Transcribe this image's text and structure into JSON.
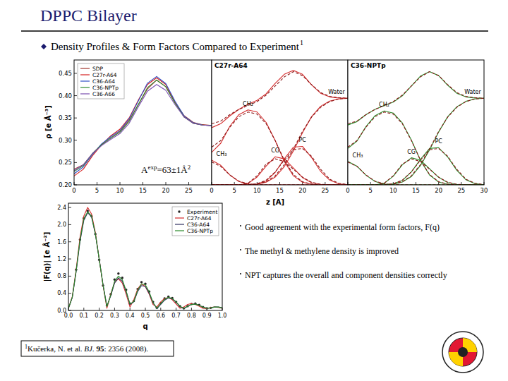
{
  "slide": {
    "title": "DPPC Bilayer",
    "heading": "Density Profiles & Form Factors Compared to Experiment",
    "heading_ref": "1",
    "bullets": [
      "Good agreement with the experimental form factors, F(q)",
      "The methyl & methylene density is improved",
      "NPT captures the overall and component densities correctly"
    ],
    "citation": [
      "1",
      "Kučerka, N. et al. ",
      "BJ.",
      " ",
      "95",
      ": 2356 (2008)."
    ]
  },
  "chart_data": [
    {
      "type": "line",
      "ylabel": "ρ [e Å⁻³]",
      "annotation": [
        "A",
        "exp",
        "=63±1Å",
        "2"
      ],
      "legend": "upper left",
      "grid": false,
      "xlim": [
        0,
        30
      ],
      "xticks": [
        0,
        5,
        10,
        15,
        20,
        25
      ],
      "ylim": [
        0.2,
        0.48
      ],
      "yticks": [
        {
          "value": 0.2,
          "label": "0.20"
        },
        0.25,
        {
          "value": 0.3,
          "label": "0.30"
        },
        0.35,
        {
          "value": 0.4,
          "label": "0.40"
        },
        0.45
      ],
      "x": [
        0,
        2,
        4,
        6,
        8,
        10,
        12,
        14,
        16,
        18,
        20,
        22,
        24,
        26,
        28,
        30
      ],
      "series": [
        {
          "name": "SDP",
          "color": "#a0342c",
          "values": [
            0.235,
            0.245,
            0.27,
            0.29,
            0.305,
            0.32,
            0.345,
            0.38,
            0.415,
            0.435,
            0.42,
            0.385,
            0.355,
            0.34,
            0.335,
            0.333
          ]
        },
        {
          "name": "C27r-A64",
          "color": "#d62020",
          "values": [
            0.22,
            0.235,
            0.265,
            0.29,
            0.31,
            0.325,
            0.35,
            0.39,
            0.425,
            0.44,
            0.425,
            0.385,
            0.352,
            0.338,
            0.334,
            0.333
          ]
        },
        {
          "name": "C36-A64",
          "color": "#3050c8",
          "values": [
            0.225,
            0.24,
            0.268,
            0.292,
            0.308,
            0.322,
            0.348,
            0.388,
            0.428,
            0.443,
            0.427,
            0.388,
            0.354,
            0.339,
            0.334,
            0.333
          ]
        },
        {
          "name": "C36-NPTp",
          "color": "#2e8b2e",
          "values": [
            0.23,
            0.243,
            0.27,
            0.29,
            0.305,
            0.318,
            0.342,
            0.38,
            0.418,
            0.435,
            0.42,
            0.383,
            0.352,
            0.338,
            0.334,
            0.333
          ]
        },
        {
          "name": "C36-A66",
          "color": "#7b4fb0",
          "values": [
            0.232,
            0.245,
            0.27,
            0.288,
            0.302,
            0.315,
            0.338,
            0.375,
            0.41,
            0.425,
            0.412,
            0.38,
            0.352,
            0.338,
            0.334,
            0.333
          ]
        }
      ]
    },
    {
      "type": "line",
      "title": "C27r-A64",
      "xlabel": "z [A]",
      "tick_labels": "x",
      "grid": false,
      "xlim": [
        0,
        30
      ],
      "xticks": [
        0,
        5,
        10,
        15,
        20,
        25
      ],
      "ylim": [
        0,
        0.48
      ],
      "x": [
        0,
        2,
        4,
        6,
        8,
        10,
        12,
        14,
        16,
        18,
        20,
        22,
        24,
        26,
        28,
        30
      ],
      "series": [
        {
          "color": "#d42a2a",
          "values": [
            0.22,
            0.235,
            0.265,
            0.29,
            0.31,
            0.325,
            0.35,
            0.39,
            0.425,
            0.44,
            0.425,
            0.385,
            0.352,
            0.338,
            0.334,
            0.333
          ]
        },
        {
          "color": "#8b1a1a",
          "line_style": "dashed",
          "values": [
            0.235,
            0.245,
            0.27,
            0.29,
            0.305,
            0.32,
            0.345,
            0.38,
            0.415,
            0.435,
            0.42,
            0.385,
            0.355,
            0.34,
            0.335,
            0.333
          ]
        },
        {
          "label": "CH₃",
          "color": "#d42a2a",
          "values": [
            0.095,
            0.075,
            0.038,
            0.013,
            0.003,
            0,
            0,
            0,
            0,
            0,
            0,
            0,
            0,
            0,
            0,
            0
          ]
        },
        {
          "color": "#8b1a1a",
          "line_style": "dashed",
          "values": [
            0.088,
            0.071,
            0.038,
            0.014,
            0.004,
            0.001,
            0,
            0,
            0,
            0,
            0,
            0,
            0,
            0,
            0,
            0
          ]
        },
        {
          "label": "CH₂",
          "color": "#d42a2a",
          "values": [
            0.125,
            0.16,
            0.225,
            0.27,
            0.288,
            0.28,
            0.24,
            0.17,
            0.09,
            0.035,
            0.01,
            0.002,
            0,
            0,
            0,
            0
          ]
        },
        {
          "color": "#8b1a1a",
          "line_style": "dashed",
          "values": [
            0.145,
            0.17,
            0.222,
            0.262,
            0.28,
            0.272,
            0.235,
            0.17,
            0.095,
            0.04,
            0.012,
            0.003,
            0,
            0,
            0,
            0
          ]
        },
        {
          "label": "CG",
          "color": "#d42a2a",
          "values": [
            0,
            0,
            0,
            0,
            0.005,
            0.03,
            0.072,
            0.108,
            0.1,
            0.065,
            0.028,
            0.008,
            0.002,
            0,
            0,
            0
          ]
        },
        {
          "color": "#8b1a1a",
          "line_style": "dashed",
          "values": [
            0,
            0,
            0,
            0,
            0.006,
            0.035,
            0.08,
            0.1,
            0.09,
            0.06,
            0.03,
            0.01,
            0.002,
            0,
            0,
            0
          ]
        },
        {
          "label": "PC",
          "color": "#d42a2a",
          "values": [
            0,
            0,
            0,
            0,
            0,
            0.003,
            0.015,
            0.048,
            0.1,
            0.145,
            0.148,
            0.105,
            0.052,
            0.018,
            0.004,
            0
          ]
        },
        {
          "color": "#8b1a1a",
          "line_style": "dashed",
          "values": [
            0,
            0,
            0,
            0,
            0,
            0.004,
            0.018,
            0.05,
            0.095,
            0.135,
            0.14,
            0.11,
            0.06,
            0.022,
            0.006,
            0.001
          ]
        },
        {
          "label": "Water",
          "color": "#d42a2a",
          "values": [
            0,
            0,
            0,
            0,
            0,
            0.002,
            0.01,
            0.03,
            0.07,
            0.13,
            0.2,
            0.262,
            0.302,
            0.322,
            0.33,
            0.333
          ]
        },
        {
          "color": "#8b1a1a",
          "line_style": "dashed",
          "values": [
            0,
            0,
            0,
            0,
            0,
            0.003,
            0.012,
            0.035,
            0.078,
            0.138,
            0.205,
            0.26,
            0.298,
            0.32,
            0.33,
            0.333
          ]
        }
      ]
    },
    {
      "type": "line",
      "title": "C36-NPTp",
      "tick_labels": "x",
      "grid": false,
      "xlim": [
        0,
        30
      ],
      "xticks": [
        0,
        5,
        10,
        15,
        20,
        25,
        30
      ],
      "ylim": [
        0,
        0.48
      ],
      "x": [
        0,
        2,
        4,
        6,
        8,
        10,
        12,
        14,
        16,
        18,
        20,
        22,
        24,
        26,
        28,
        30
      ],
      "series": [
        {
          "color": "#2a8a2a",
          "values": [
            0.23,
            0.243,
            0.27,
            0.29,
            0.305,
            0.318,
            0.342,
            0.38,
            0.418,
            0.435,
            0.42,
            0.383,
            0.352,
            0.338,
            0.334,
            0.333
          ]
        },
        {
          "color": "#8b1a1a",
          "line_style": "dashed",
          "values": [
            0.235,
            0.245,
            0.27,
            0.29,
            0.305,
            0.32,
            0.345,
            0.38,
            0.415,
            0.435,
            0.42,
            0.385,
            0.355,
            0.34,
            0.335,
            0.333
          ]
        },
        {
          "label": "CH₃",
          "color": "#2a8a2a",
          "values": [
            0.09,
            0.072,
            0.037,
            0.013,
            0.003,
            0,
            0,
            0,
            0,
            0,
            0,
            0,
            0,
            0,
            0,
            0
          ]
        },
        {
          "color": "#8b1a1a",
          "line_style": "dashed",
          "values": [
            0.088,
            0.071,
            0.038,
            0.014,
            0.004,
            0.001,
            0,
            0,
            0,
            0,
            0,
            0,
            0,
            0,
            0,
            0
          ]
        },
        {
          "label": "CH₂",
          "color": "#2a8a2a",
          "values": [
            0.14,
            0.168,
            0.224,
            0.266,
            0.284,
            0.276,
            0.238,
            0.172,
            0.094,
            0.038,
            0.011,
            0.002,
            0,
            0,
            0,
            0
          ]
        },
        {
          "color": "#8b1a1a",
          "line_style": "dashed",
          "values": [
            0.145,
            0.17,
            0.222,
            0.262,
            0.28,
            0.272,
            0.235,
            0.17,
            0.095,
            0.04,
            0.012,
            0.003,
            0,
            0,
            0,
            0
          ]
        },
        {
          "label": "CG",
          "color": "#2a8a2a",
          "values": [
            0,
            0,
            0,
            0,
            0.006,
            0.033,
            0.077,
            0.104,
            0.095,
            0.062,
            0.029,
            0.009,
            0.002,
            0,
            0,
            0
          ]
        },
        {
          "color": "#8b1a1a",
          "line_style": "dashed",
          "values": [
            0,
            0,
            0,
            0,
            0.006,
            0.035,
            0.08,
            0.1,
            0.09,
            0.06,
            0.03,
            0.01,
            0.002,
            0,
            0,
            0
          ]
        },
        {
          "label": "PC",
          "color": "#2a8a2a",
          "values": [
            0,
            0,
            0,
            0,
            0,
            0.004,
            0.017,
            0.05,
            0.098,
            0.14,
            0.143,
            0.107,
            0.056,
            0.02,
            0.005,
            0
          ]
        },
        {
          "color": "#8b1a1a",
          "line_style": "dashed",
          "values": [
            0,
            0,
            0,
            0,
            0,
            0.004,
            0.018,
            0.05,
            0.095,
            0.135,
            0.14,
            0.11,
            0.06,
            0.022,
            0.006,
            0.001
          ]
        },
        {
          "label": "Water",
          "color": "#2a8a2a",
          "values": [
            0,
            0,
            0,
            0,
            0,
            0.002,
            0.011,
            0.032,
            0.074,
            0.134,
            0.203,
            0.262,
            0.3,
            0.321,
            0.33,
            0.333
          ]
        },
        {
          "color": "#8b1a1a",
          "line_style": "dashed",
          "values": [
            0,
            0,
            0,
            0,
            0,
            0.003,
            0.012,
            0.035,
            0.078,
            0.138,
            0.205,
            0.26,
            0.298,
            0.32,
            0.33,
            0.333
          ]
        }
      ]
    },
    {
      "type": "line",
      "xlabel": "q",
      "ylabel": "|F(q)| [e Å⁻²]",
      "legend": "upper right",
      "grid": false,
      "xlim": [
        0,
        1
      ],
      "xticks": [
        {
          "value": 0,
          "label": "0.0"
        },
        0.1,
        0.2,
        0.3,
        0.4,
        0.5,
        0.6,
        0.7,
        0.8,
        0.9,
        {
          "value": 1,
          "label": "1.0"
        }
      ],
      "ylim": [
        0,
        2.5
      ],
      "yticks": [
        {
          "value": 0,
          "label": "0.0"
        },
        0.4,
        0.8,
        1.2,
        1.6,
        {
          "value": 2,
          "label": "2.0"
        },
        2.4
      ],
      "x": [
        0,
        0.025,
        0.05,
        0.075,
        0.1,
        0.125,
        0.15,
        0.175,
        0.2,
        0.225,
        0.25,
        0.275,
        0.3,
        0.325,
        0.35,
        0.375,
        0.4,
        0.425,
        0.45,
        0.475,
        0.5,
        0.525,
        0.55,
        0.575,
        0.6,
        0.625,
        0.65,
        0.675,
        0.7,
        0.725,
        0.75,
        0.775,
        0.8,
        0.825,
        0.85,
        0.875,
        0.9,
        0.925,
        0.95,
        0.975,
        1
      ],
      "series": [
        {
          "name": "Experiment",
          "type": "scatter",
          "marker": "circle",
          "color": "#222222",
          "values": [
            null,
            null,
            0.95,
            1.65,
            2.15,
            2.32,
            2.2,
            1.78,
            1.18,
            0.58,
            0.12,
            0.38,
            0.72,
            0.86,
            0.76,
            0.48,
            0.16,
            0.22,
            0.5,
            0.66,
            0.62,
            0.44,
            0.2,
            0.06,
            0.17,
            0.28,
            0.32,
            0.29,
            0.2,
            0.1,
            0.05,
            0.1,
            0.15,
            0.16,
            0.13,
            0.08,
            0.05,
            0.06,
            null,
            null,
            null
          ]
        },
        {
          "name": "C27r-A64",
          "color": "#d42a2a",
          "values": [
            0.05,
            0.32,
            0.95,
            1.7,
            2.2,
            2.4,
            2.25,
            1.82,
            1.2,
            0.58,
            0.05,
            0.38,
            0.65,
            0.74,
            0.64,
            0.38,
            0.08,
            0.25,
            0.5,
            0.62,
            0.56,
            0.38,
            0.14,
            0.08,
            0.2,
            0.28,
            0.3,
            0.25,
            0.15,
            0.05,
            0.08,
            0.14,
            0.16,
            0.14,
            0.1,
            0.05,
            0.04,
            0.07,
            0.08,
            0.07,
            0.05
          ]
        },
        {
          "name": "C36-A64",
          "color": "#303060",
          "values": [
            0.05,
            0.3,
            0.9,
            1.6,
            2.1,
            2.28,
            2.18,
            1.78,
            1.2,
            0.6,
            0.1,
            0.34,
            0.64,
            0.76,
            0.68,
            0.44,
            0.14,
            0.2,
            0.44,
            0.58,
            0.56,
            0.4,
            0.18,
            0.04,
            0.14,
            0.24,
            0.29,
            0.27,
            0.19,
            0.09,
            0.04,
            0.1,
            0.14,
            0.15,
            0.12,
            0.08,
            0.05,
            0.06,
            0.08,
            0.08,
            0.06
          ]
        },
        {
          "name": "C36-NPTp",
          "color": "#2a8a2a",
          "values": [
            0.05,
            0.31,
            0.92,
            1.64,
            2.14,
            2.3,
            2.2,
            1.79,
            1.19,
            0.59,
            0.09,
            0.36,
            0.68,
            0.8,
            0.72,
            0.46,
            0.15,
            0.21,
            0.47,
            0.62,
            0.6,
            0.43,
            0.19,
            0.05,
            0.16,
            0.26,
            0.31,
            0.28,
            0.2,
            0.1,
            0.05,
            0.1,
            0.14,
            0.15,
            0.12,
            0.08,
            0.05,
            0.06,
            0.08,
            0.08,
            0.06
          ]
        }
      ]
    }
  ]
}
